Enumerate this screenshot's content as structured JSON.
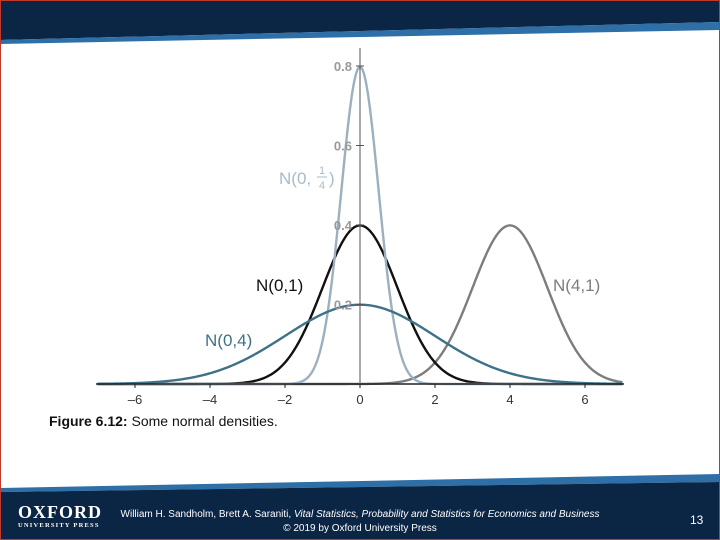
{
  "colors": {
    "band_dark": "#0b2545",
    "band_light": "#2e6fa7",
    "series": [
      "#7d7d7d",
      "#111111",
      "#9cb0bf",
      "#3f7189"
    ],
    "label": [
      "#7d7d7d",
      "#111111",
      "#a9bac8",
      "#3f7189"
    ]
  },
  "chart_data": {
    "type": "line",
    "xlim": [
      -7,
      7
    ],
    "ylim": [
      0,
      0.8
    ],
    "x_ticks": [
      -6,
      -4,
      -2,
      0,
      2,
      4,
      6
    ],
    "x_tick_labels": [
      "–6",
      "–4",
      "–2",
      "0",
      "2",
      "4",
      "6"
    ],
    "y_ticks": [
      0.2,
      0.4,
      0.6,
      0.8
    ],
    "y_tick_labels": [
      "0.2",
      "0.4",
      "0.6",
      "0.8"
    ],
    "grid": false,
    "series": [
      {
        "name": "N(4,1)",
        "mean": 4,
        "variance": 1
      },
      {
        "name": "N(0,1)",
        "mean": 0,
        "variance": 1
      },
      {
        "name": "N(0,1/4)",
        "mean": 0,
        "variance": 0.25
      },
      {
        "name": "N(0,4)",
        "mean": 0,
        "variance": 4
      }
    ]
  },
  "labels": {
    "n01": "N(0,1)",
    "n41": "N(4,1)",
    "n04": "N(0,4)",
    "nq_prefix": "N(0,",
    "nq_num": "1",
    "nq_den": "4",
    "nq_suffix": ")"
  },
  "caption": {
    "label": "Figure 6.12:",
    "text": "Some normal densities."
  },
  "footer": {
    "logo_word": "OXFORD",
    "logo_sub": "UNIVERSITY PRESS",
    "authors": "William H. Sandholm, Brett A. Saraniti, ",
    "book_title": "Vital Statistics, Probability and Statistics for Economics and Business",
    "copyright": "© 2019 by Oxford University Press",
    "page_number": "13"
  }
}
